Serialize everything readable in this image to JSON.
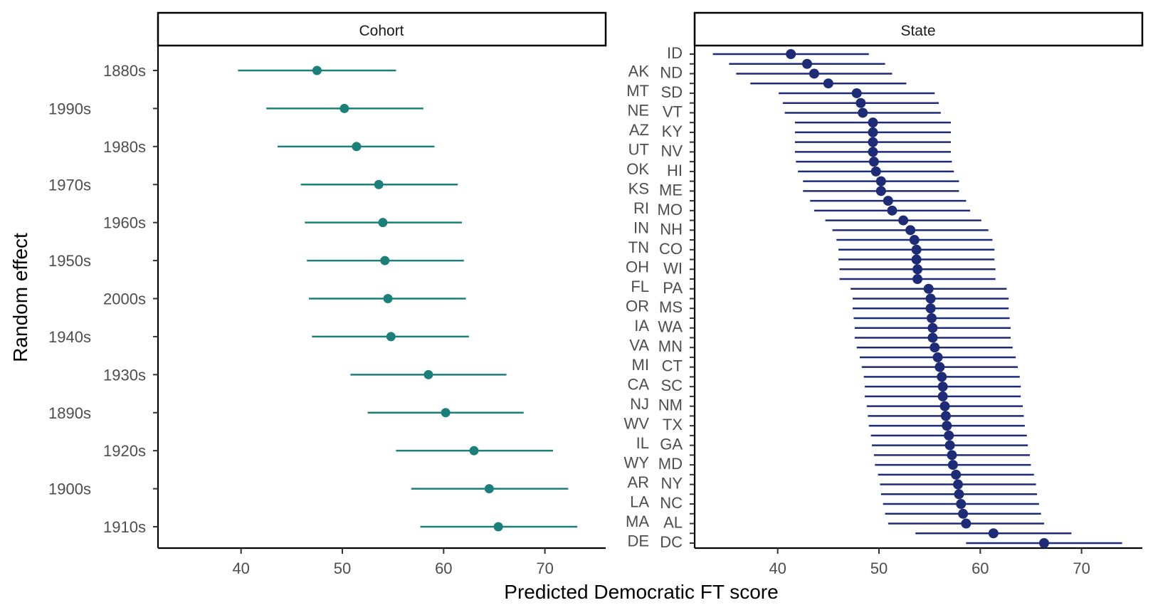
{
  "chart_data": [
    {
      "type": "scatter",
      "panel": "Cohort",
      "ylabel": "Random effect",
      "xlabel": "Predicted Democratic FT score",
      "x_ticks": [
        40,
        50,
        60,
        70
      ],
      "xlim": [
        31.8,
        76.0
      ],
      "color": "#1b7f7a",
      "grid": false,
      "categories": [
        "1880s",
        "1990s",
        "1980s",
        "1970s",
        "1960s",
        "1950s",
        "2000s",
        "1940s",
        "1930s",
        "1890s",
        "1920s",
        "1900s",
        "1910s"
      ],
      "estimate": [
        47.5,
        50.2,
        51.4,
        53.6,
        54.0,
        54.2,
        54.5,
        54.8,
        58.5,
        60.2,
        63.0,
        64.5,
        65.4
      ],
      "lower": [
        39.7,
        42.5,
        43.6,
        45.9,
        46.3,
        46.5,
        46.7,
        47.0,
        50.8,
        52.5,
        55.3,
        56.8,
        57.7
      ],
      "upper": [
        55.3,
        58.0,
        59.1,
        61.4,
        61.8,
        62.0,
        62.2,
        62.5,
        66.2,
        67.9,
        70.8,
        72.3,
        73.2
      ]
    },
    {
      "type": "scatter",
      "panel": "State",
      "xlabel": "Predicted Democratic FT score",
      "x_ticks": [
        40,
        50,
        60,
        70
      ],
      "xlim": [
        31.8,
        76.0
      ],
      "color": "#1e2c78",
      "grid": false,
      "categories": [
        "ID",
        "AK",
        "ND",
        "MT",
        "SD",
        "NE",
        "VT",
        "AZ",
        "KY",
        "UT",
        "NV",
        "OK",
        "HI",
        "KS",
        "ME",
        "RI",
        "MO",
        "IN",
        "NH",
        "TN",
        "CO",
        "OH",
        "WI",
        "FL",
        "PA",
        "OR",
        "MS",
        "IA",
        "WA",
        "VA",
        "MN",
        "MI",
        "CT",
        "CA",
        "SC",
        "NJ",
        "NM",
        "WV",
        "TX",
        "IL",
        "GA",
        "WY",
        "MD",
        "AR",
        "NY",
        "LA",
        "NC",
        "MA",
        "AL",
        "DE",
        "DC"
      ],
      "estimate": [
        41.3,
        42.9,
        43.6,
        45.0,
        47.8,
        48.2,
        48.4,
        49.4,
        49.4,
        49.4,
        49.4,
        49.5,
        49.7,
        50.2,
        50.2,
        50.9,
        51.3,
        52.4,
        53.1,
        53.5,
        53.7,
        53.7,
        53.8,
        53.8,
        54.9,
        55.1,
        55.1,
        55.2,
        55.3,
        55.3,
        55.5,
        55.8,
        56.0,
        56.2,
        56.3,
        56.3,
        56.5,
        56.6,
        56.7,
        56.9,
        57.0,
        57.2,
        57.3,
        57.6,
        57.8,
        57.9,
        58.1,
        58.3,
        58.6,
        61.3,
        66.3
      ],
      "lower": [
        33.6,
        35.2,
        35.9,
        37.3,
        40.1,
        40.5,
        40.7,
        41.7,
        41.7,
        41.7,
        41.7,
        41.8,
        42.0,
        42.5,
        42.5,
        43.2,
        43.6,
        44.7,
        45.4,
        45.8,
        46.0,
        46.0,
        46.1,
        46.1,
        47.2,
        47.4,
        47.4,
        47.5,
        47.6,
        47.6,
        47.8,
        48.1,
        48.3,
        48.5,
        48.6,
        48.6,
        48.8,
        48.9,
        49.0,
        49.2,
        49.3,
        49.5,
        49.6,
        49.9,
        50.1,
        50.2,
        50.4,
        50.6,
        50.9,
        53.6,
        58.6
      ],
      "upper": [
        49.0,
        50.6,
        51.3,
        52.7,
        55.5,
        55.9,
        56.1,
        57.1,
        57.1,
        57.1,
        57.1,
        57.2,
        57.4,
        57.9,
        57.9,
        58.6,
        59.0,
        60.1,
        60.8,
        61.2,
        61.4,
        61.4,
        61.5,
        61.5,
        62.6,
        62.8,
        62.8,
        62.9,
        63.0,
        63.0,
        63.2,
        63.5,
        63.7,
        63.9,
        64.0,
        64.0,
        64.2,
        64.3,
        64.4,
        64.6,
        64.7,
        64.9,
        65.0,
        65.3,
        65.5,
        65.6,
        65.8,
        66.0,
        66.3,
        69.0,
        74.0
      ]
    }
  ]
}
